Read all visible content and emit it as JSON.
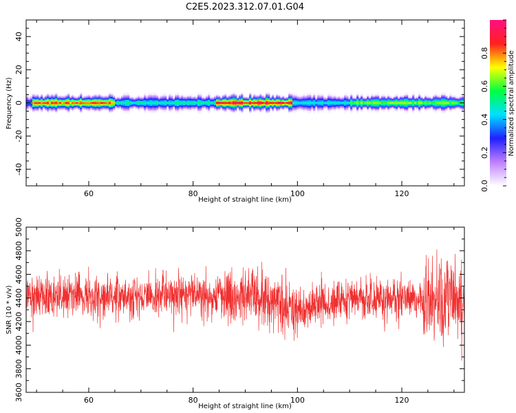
{
  "title": "C2E5.2023.312.07.01.G04",
  "chart_data": [
    {
      "type": "heatmap",
      "name": "spectrogram",
      "xlabel": "Height of straight line (km)",
      "ylabel": "Frequency (Hz)",
      "xlim": [
        48,
        132
      ],
      "ylim": [
        -50,
        50
      ],
      "xticks": [
        60,
        80,
        100,
        120
      ],
      "yticks": [
        -40,
        -20,
        0,
        20,
        40
      ],
      "xtick_labels": [
        "60",
        "80",
        "100",
        "120"
      ],
      "ytick_labels": [
        "-40",
        "-20",
        "0",
        "20",
        "40"
      ],
      "band_center_hz": 0,
      "band_halfwidth_hz": 3,
      "peak_segments": [
        {
          "x0": 49,
          "x1": 65,
          "amplitude": 0.9
        },
        {
          "x0": 65,
          "x1": 84,
          "amplitude": 0.55
        },
        {
          "x0": 84,
          "x1": 99,
          "amplitude": 1.0
        },
        {
          "x0": 99,
          "x1": 110,
          "amplitude": 0.5
        },
        {
          "x0": 110,
          "x1": 132,
          "amplitude": 0.7
        }
      ],
      "colorbar": {
        "label": "Normalized spectral amplitude",
        "range": [
          0.0,
          1.0
        ],
        "ticks": [
          "0.0",
          "0.2",
          "0.4",
          "0.6",
          "0.8"
        ],
        "colors": [
          "#ffffff",
          "#bf80ff",
          "#2020ff",
          "#00e0ff",
          "#00ff40",
          "#ffff00",
          "#ff2020",
          "#ff1080"
        ]
      }
    },
    {
      "type": "line",
      "name": "snr",
      "xlabel": "Height of straight line (km)",
      "ylabel": "SNR (10 * v/v)",
      "xlim": [
        48,
        132
      ],
      "ylim": [
        3600,
        5000
      ],
      "xticks": [
        60,
        80,
        100,
        120
      ],
      "yticks": [
        3600,
        3800,
        4000,
        4200,
        4400,
        4600,
        4800,
        5000
      ],
      "xtick_labels": [
        "60",
        "80",
        "100",
        "120"
      ],
      "ytick_labels": [
        "3600",
        "3800",
        "4000",
        "4200",
        "4400",
        "4600",
        "4800",
        "5000"
      ],
      "color": "#f03030",
      "mean": 4420,
      "noise_std": 90,
      "n_points": 2100,
      "mean_profile": [
        {
          "x": 48,
          "y": 4420
        },
        {
          "x": 70,
          "y": 4410
        },
        {
          "x": 85,
          "y": 4420
        },
        {
          "x": 92,
          "y": 4400
        },
        {
          "x": 100,
          "y": 4300
        },
        {
          "x": 110,
          "y": 4400
        },
        {
          "x": 122,
          "y": 4380
        },
        {
          "x": 132,
          "y": 4350
        }
      ]
    }
  ]
}
